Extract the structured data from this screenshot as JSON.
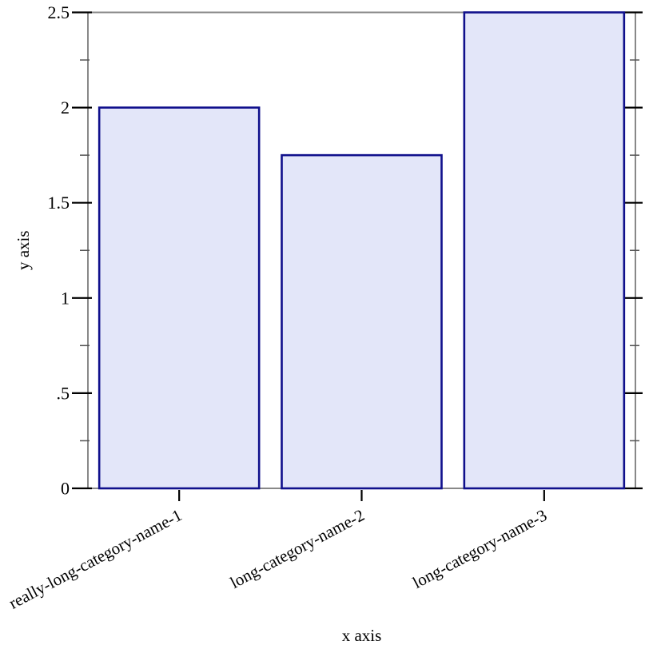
{
  "figure": {
    "background": "#ffffff"
  },
  "chart_data": {
    "type": "bar",
    "title": "",
    "xlabel": "x axis",
    "ylabel": "y axis",
    "categories": [
      "really-long-category-name-1",
      "long-category-name-2",
      "long-category-name-3"
    ],
    "values": [
      2,
      1.75,
      2.5
    ],
    "ylim": [
      0,
      2.5
    ],
    "y_major_ticks": {
      "values": [
        0,
        0.5,
        1,
        1.5,
        2,
        2.5
      ],
      "labels": [
        "0",
        ".5",
        "1",
        "1.5",
        "2",
        "2.5"
      ]
    },
    "y_minor_tick_values": [
      0.25,
      0.75,
      1.25,
      1.75,
      2.25
    ],
    "grid": false,
    "legend": "none",
    "x_tick_label_angle_deg": -28,
    "colors": {
      "bar_fill": "#e3e6f9",
      "bar_stroke": "#10108c",
      "frame": "#888888",
      "major_tick": "#000000",
      "minor_tick": "#555555",
      "text": "#000000"
    }
  }
}
